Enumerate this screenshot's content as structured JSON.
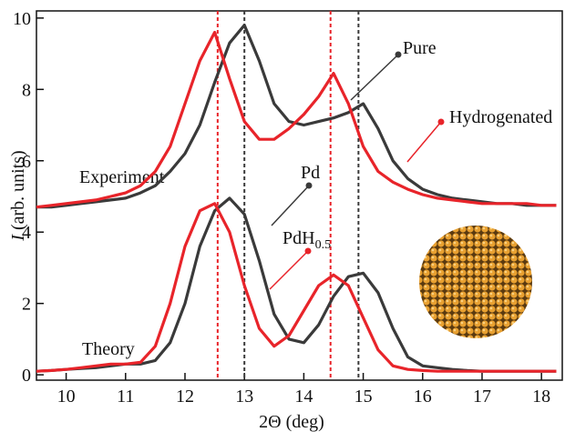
{
  "chart_data": {
    "type": "line",
    "x_label": "2Θ (deg)",
    "y_label_symbol": "I",
    "y_label": "(arb. units)",
    "x": [
      9.5,
      9.75,
      10,
      10.25,
      10.5,
      10.75,
      11,
      11.25,
      11.5,
      11.75,
      12,
      12.25,
      12.5,
      12.75,
      13,
      13.25,
      13.5,
      13.75,
      14,
      14.25,
      14.5,
      14.75,
      15,
      15.25,
      15.5,
      15.75,
      16,
      16.25,
      16.5,
      16.75,
      17,
      17.25,
      17.5,
      17.75,
      18,
      18.25
    ],
    "series": [
      {
        "name": "Pure",
        "color": "#3a3a3a",
        "values": [
          4.7,
          4.7,
          4.75,
          4.8,
          4.85,
          4.9,
          4.95,
          5.1,
          5.3,
          5.7,
          6.2,
          7.0,
          8.2,
          9.3,
          9.8,
          8.8,
          7.6,
          7.1,
          7.0,
          7.1,
          7.2,
          7.35,
          7.6,
          6.9,
          6.0,
          5.5,
          5.2,
          5.05,
          4.95,
          4.9,
          4.85,
          4.8,
          4.8,
          4.75,
          4.75,
          4.75
        ]
      },
      {
        "name": "Hydrogenated",
        "color": "#e8242a",
        "values": [
          4.7,
          4.75,
          4.8,
          4.85,
          4.9,
          5.0,
          5.1,
          5.3,
          5.7,
          6.4,
          7.6,
          8.8,
          9.6,
          8.3,
          7.1,
          6.6,
          6.6,
          6.9,
          7.3,
          7.8,
          8.45,
          7.6,
          6.4,
          5.7,
          5.4,
          5.2,
          5.05,
          4.95,
          4.9,
          4.85,
          4.8,
          4.8,
          4.8,
          4.8,
          4.75,
          4.75
        ]
      },
      {
        "name": "Pd",
        "color": "#3a3a3a",
        "values": [
          0.1,
          0.12,
          0.15,
          0.18,
          0.2,
          0.25,
          0.3,
          0.3,
          0.4,
          0.9,
          2.0,
          3.6,
          4.6,
          4.95,
          4.5,
          3.2,
          1.7,
          1.0,
          0.9,
          1.4,
          2.2,
          2.75,
          2.85,
          2.3,
          1.3,
          0.5,
          0.25,
          0.2,
          0.15,
          0.12,
          0.1,
          0.1,
          0.1,
          0.1,
          0.1,
          0.1
        ]
      },
      {
        "name": "PdH",
        "name_subscript": "0.5",
        "color": "#e8242a",
        "values": [
          0.1,
          0.12,
          0.15,
          0.2,
          0.25,
          0.3,
          0.3,
          0.35,
          0.8,
          2.0,
          3.6,
          4.6,
          4.8,
          4.0,
          2.5,
          1.3,
          0.8,
          1.1,
          1.8,
          2.5,
          2.8,
          2.5,
          1.6,
          0.7,
          0.25,
          0.15,
          0.12,
          0.1,
          0.1,
          0.1,
          0.1,
          0.1,
          0.1,
          0.1,
          0.1,
          0.1
        ]
      }
    ],
    "reference_lines": [
      {
        "x": 12.55,
        "color": "#e8242a"
      },
      {
        "x": 13.0,
        "color": "#3a3a3a"
      },
      {
        "x": 14.45,
        "color": "#e8242a"
      },
      {
        "x": 14.92,
        "color": "#3a3a3a"
      }
    ],
    "annotations": [
      "Experiment",
      "Theory"
    ],
    "xlim": [
      9.5,
      18.35
    ],
    "ylim": [
      -0.15,
      10.2
    ],
    "xticks": [
      10,
      11,
      12,
      13,
      14,
      15,
      16,
      17,
      18
    ],
    "yticks": [
      0,
      2,
      4,
      6,
      8,
      10
    ]
  }
}
